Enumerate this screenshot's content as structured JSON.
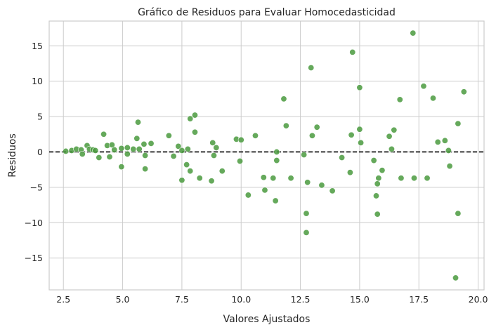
{
  "chart_data": {
    "type": "scatter",
    "title": "Gráfico de Residuos para Evaluar Homocedasticidad",
    "xlabel": "Valores Ajustados",
    "ylabel": "Residuos",
    "xlim": [
      1.9,
      20.25
    ],
    "ylim": [
      -19.5,
      18.5
    ],
    "x_ticks": [
      2.5,
      5.0,
      7.5,
      10.0,
      12.5,
      15.0,
      17.5,
      20.0
    ],
    "x_tick_labels": [
      "2.5",
      "5.0",
      "7.5",
      "10.0",
      "12.5",
      "15.0",
      "17.5",
      "20.0"
    ],
    "y_ticks": [
      -15,
      -10,
      -5,
      0,
      5,
      10,
      15
    ],
    "y_tick_labels": [
      "−15",
      "−10",
      "−5",
      "0",
      "5",
      "10",
      "15"
    ],
    "grid": true,
    "reference_line": {
      "y": 0,
      "style": "dashed",
      "color": "#000000"
    },
    "point_color": "#4a9a3e",
    "points": [
      [
        2.6,
        0.1
      ],
      [
        2.85,
        0.2
      ],
      [
        3.05,
        0.4
      ],
      [
        3.25,
        0.3
      ],
      [
        3.3,
        -0.3
      ],
      [
        3.5,
        0.9
      ],
      [
        3.6,
        0.4
      ],
      [
        3.75,
        0.3
      ],
      [
        3.85,
        0.2
      ],
      [
        4.0,
        -0.8
      ],
      [
        4.2,
        2.5
      ],
      [
        4.35,
        0.9
      ],
      [
        4.45,
        -0.7
      ],
      [
        4.55,
        1.0
      ],
      [
        4.65,
        0.3
      ],
      [
        4.95,
        -2.1
      ],
      [
        4.95,
        0.5
      ],
      [
        5.2,
        0.6
      ],
      [
        5.2,
        -0.3
      ],
      [
        5.45,
        0.4
      ],
      [
        5.6,
        1.9
      ],
      [
        5.65,
        4.2
      ],
      [
        5.7,
        0.4
      ],
      [
        5.9,
        1.1
      ],
      [
        5.95,
        -2.4
      ],
      [
        5.95,
        -0.5
      ],
      [
        6.2,
        1.2
      ],
      [
        6.95,
        2.3
      ],
      [
        7.15,
        -0.6
      ],
      [
        7.35,
        0.8
      ],
      [
        7.5,
        -4.0
      ],
      [
        7.5,
        0.2
      ],
      [
        7.7,
        -1.8
      ],
      [
        7.75,
        0.4
      ],
      [
        7.85,
        -2.7
      ],
      [
        7.85,
        4.7
      ],
      [
        8.05,
        5.2
      ],
      [
        8.05,
        2.8
      ],
      [
        8.25,
        -3.7
      ],
      [
        8.75,
        -4.1
      ],
      [
        8.8,
        1.3
      ],
      [
        8.85,
        -0.5
      ],
      [
        8.95,
        0.6
      ],
      [
        9.2,
        -2.7
      ],
      [
        9.8,
        1.8
      ],
      [
        10.0,
        1.7
      ],
      [
        9.95,
        -1.3
      ],
      [
        10.3,
        -6.1
      ],
      [
        10.6,
        2.3
      ],
      [
        10.95,
        -3.6
      ],
      [
        11.0,
        -5.4
      ],
      [
        11.35,
        -3.7
      ],
      [
        11.45,
        -6.9
      ],
      [
        11.5,
        0.0
      ],
      [
        11.5,
        -1.2
      ],
      [
        11.8,
        7.5
      ],
      [
        11.9,
        3.7
      ],
      [
        12.1,
        -3.7
      ],
      [
        12.65,
        -0.4
      ],
      [
        12.75,
        -8.7
      ],
      [
        12.75,
        -11.4
      ],
      [
        12.8,
        -4.3
      ],
      [
        12.95,
        11.9
      ],
      [
        13.0,
        2.3
      ],
      [
        13.2,
        3.5
      ],
      [
        13.4,
        -4.7
      ],
      [
        13.85,
        -5.5
      ],
      [
        14.25,
        -0.8
      ],
      [
        14.6,
        -2.9
      ],
      [
        14.65,
        2.4
      ],
      [
        14.7,
        14.1
      ],
      [
        15.0,
        3.2
      ],
      [
        15.0,
        9.1
      ],
      [
        15.05,
        1.3
      ],
      [
        15.6,
        -1.2
      ],
      [
        15.7,
        -6.2
      ],
      [
        15.75,
        -4.5
      ],
      [
        15.75,
        -8.8
      ],
      [
        15.8,
        -3.7
      ],
      [
        15.95,
        -2.6
      ],
      [
        16.25,
        2.2
      ],
      [
        16.35,
        0.4
      ],
      [
        16.45,
        3.1
      ],
      [
        16.7,
        7.4
      ],
      [
        16.75,
        -3.7
      ],
      [
        17.25,
        16.8
      ],
      [
        17.3,
        -3.7
      ],
      [
        17.7,
        9.3
      ],
      [
        17.85,
        -3.7
      ],
      [
        18.1,
        7.6
      ],
      [
        18.3,
        1.4
      ],
      [
        18.6,
        1.6
      ],
      [
        18.75,
        0.2
      ],
      [
        18.8,
        -2.0
      ],
      [
        19.05,
        -17.8
      ],
      [
        19.15,
        4.0
      ],
      [
        19.15,
        -8.7
      ],
      [
        19.4,
        8.5
      ]
    ]
  }
}
